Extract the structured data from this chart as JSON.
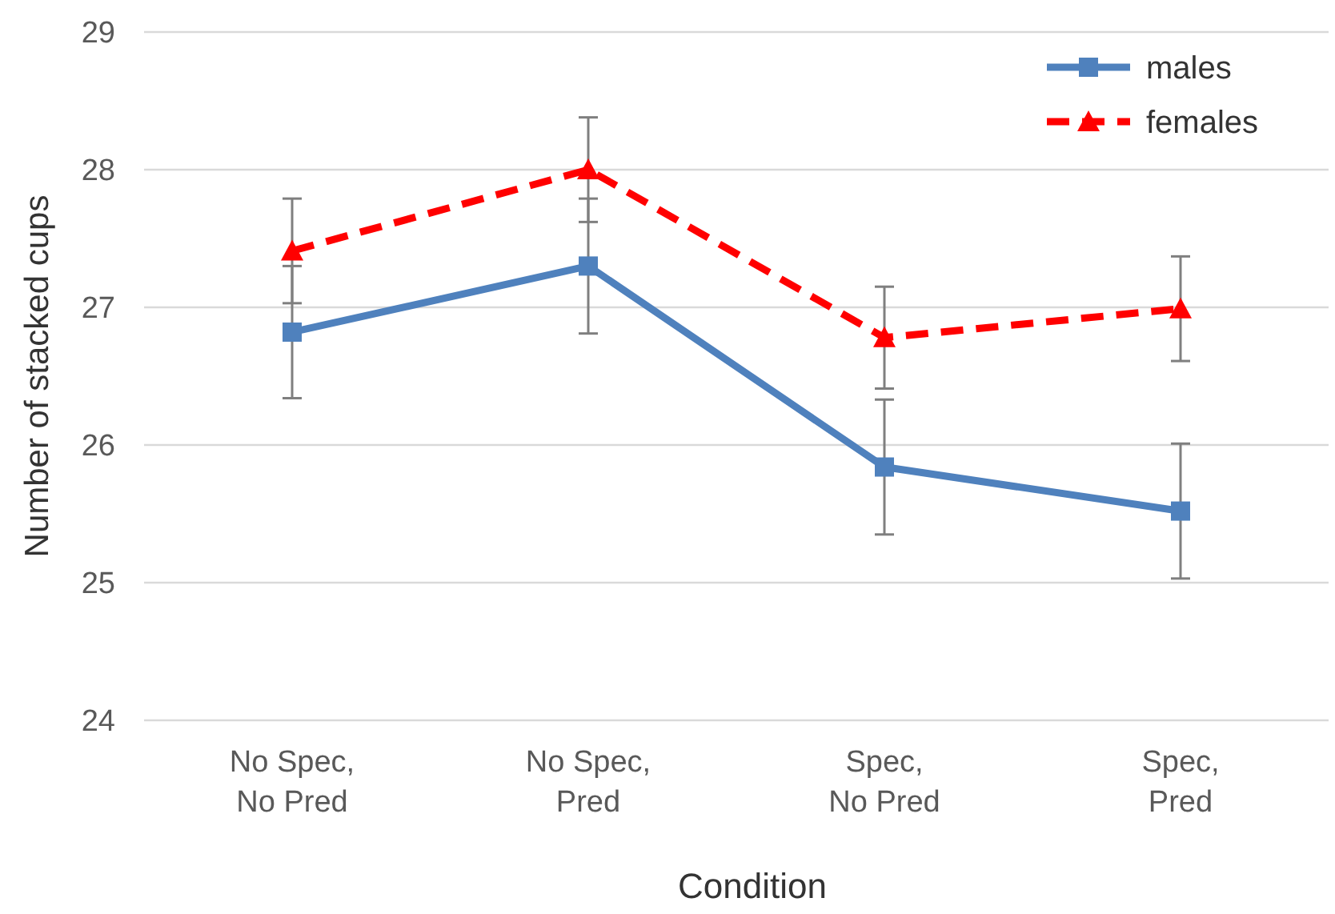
{
  "chart_data": {
    "type": "line",
    "xlabel": "Condition",
    "ylabel": "Number of stacked cups",
    "categories": [
      "No Spec,\nNo Pred",
      "No Spec,\nPred",
      "Spec,\nNo Pred",
      "Spec,\nPred"
    ],
    "series": [
      {
        "name": "males",
        "color": "#4f81bd",
        "values": [
          26.82,
          27.3,
          25.84,
          25.52
        ],
        "errors": [
          0.48,
          0.49,
          0.49,
          0.49
        ],
        "marker": "square",
        "line_style": "solid"
      },
      {
        "name": "females",
        "color": "#ff0000",
        "values": [
          27.41,
          28.0,
          26.78,
          26.99
        ],
        "errors": [
          0.38,
          0.38,
          0.37,
          0.38
        ],
        "marker": "triangle",
        "line_style": "dashed"
      }
    ],
    "ylim": [
      24,
      29
    ],
    "yticks": [
      24,
      25,
      26,
      27,
      28,
      29
    ],
    "grid": "y",
    "legend": "top right"
  }
}
